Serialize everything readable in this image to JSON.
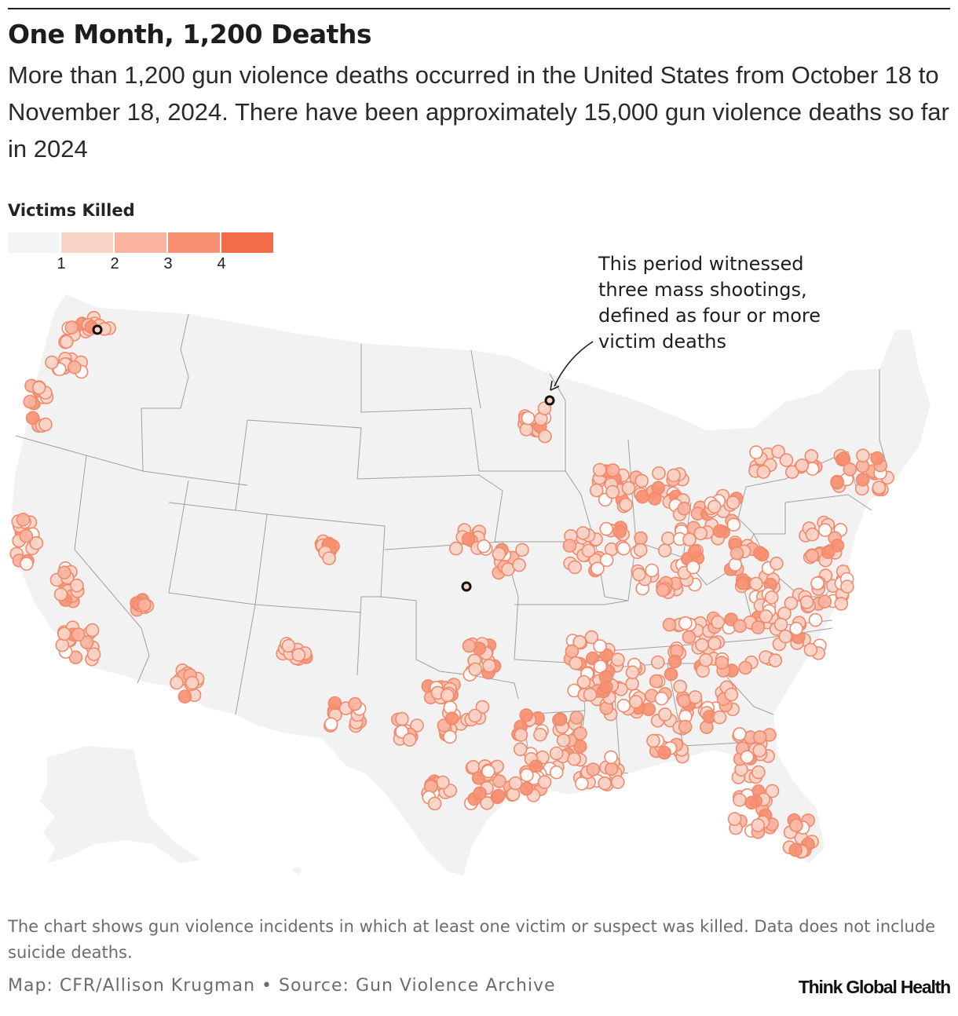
{
  "header": {
    "title": "One Month, 1,200 Deaths",
    "subtitle": "More than 1,200 gun violence deaths occurred in the United States from October 18 to November 18, 2024. There have been approximately 15,000 gun violence deaths so far in 2024"
  },
  "legend": {
    "title": "Victims Killed",
    "colors": [
      "#f3f4f6",
      "#f9d3c6",
      "#f9b39e",
      "#f78f70",
      "#f36b47"
    ],
    "ticks": [
      "1",
      "2",
      "3",
      "4"
    ]
  },
  "annotation": {
    "lines": [
      "This period witnessed",
      "three mass shootings,",
      "defined as four or more",
      "victim deaths"
    ]
  },
  "footer": {
    "note": "The chart shows gun violence incidents in which at least one victim or suspect was killed. Data does not include suicide deaths.",
    "credit": "Map: CFR/Allison Krugman • Source: Gun Violence Archive",
    "brand": "Think Global Health"
  },
  "map": {
    "land_color": "#f2f2f2",
    "border_color": "#a0a0a0",
    "mass_shooting_marker_color": "#111111"
  }
}
